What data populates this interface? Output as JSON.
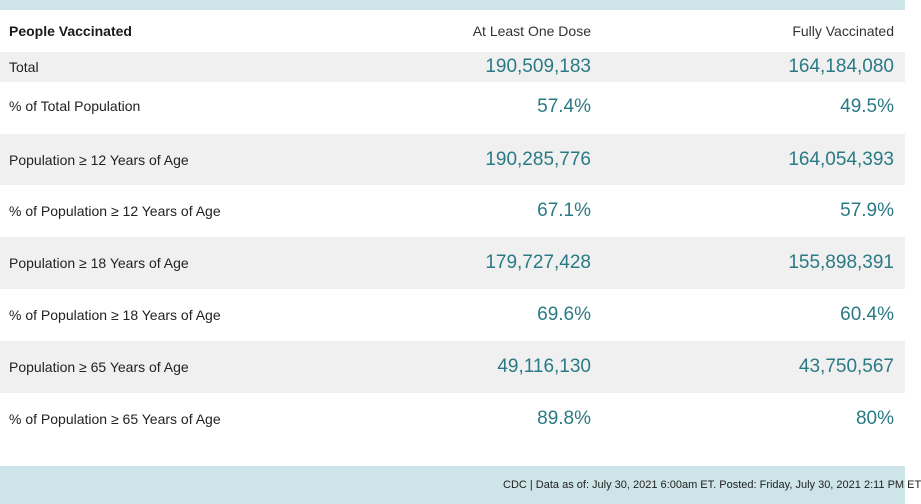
{
  "table": {
    "header": {
      "label": "People Vaccinated",
      "col_one": "At Least One Dose",
      "col_full": "Fully Vaccinated"
    },
    "rows": [
      {
        "label": "Total",
        "one": "190,509,183",
        "full": "164,184,080"
      },
      {
        "label": "% of Total Population",
        "one": "57.4%",
        "full": "49.5%"
      },
      {
        "label": "Population ≥ 12 Years of Age",
        "one": "190,285,776",
        "full": "164,054,393"
      },
      {
        "label": "% of Population ≥ 12 Years of Age",
        "one": "67.1%",
        "full": "57.9%"
      },
      {
        "label": "Population ≥ 18 Years of Age",
        "one": "179,727,428",
        "full": "155,898,391"
      },
      {
        "label": "% of Population ≥ 18 Years of Age",
        "one": "69.6%",
        "full": "60.4%"
      },
      {
        "label": "Population ≥ 65 Years of Age",
        "one": "49,116,130",
        "full": "43,750,567"
      },
      {
        "label": "% of Population ≥ 65 Years of Age",
        "one": "89.8%",
        "full": "80%"
      }
    ]
  },
  "footer": {
    "source_text": "CDC | Data as of: July 30, 2021 6:00am ET. Posted: Friday, July 30, 2021 2:11 PM ET"
  },
  "colors": {
    "value_teal": "#2a7a85",
    "strip_background": "#cde4e8",
    "shaded_row": "#f0f0f0"
  }
}
